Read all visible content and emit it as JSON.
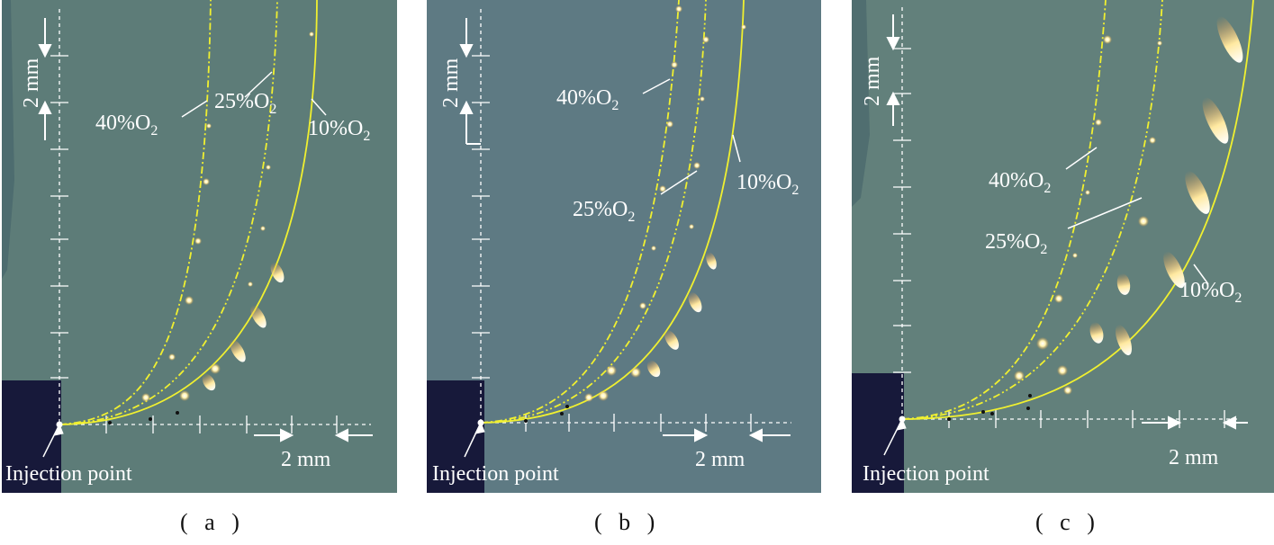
{
  "panels": [
    {
      "caption": "( a )",
      "scale_x": "2 mm",
      "scale_y": "2 mm",
      "injection": "Injection point",
      "labels": {
        "o40": "40%O",
        "o25": "25%O",
        "o10": "10%O",
        "sub": "2"
      }
    },
    {
      "caption": "( b )",
      "scale_x": "2 mm",
      "scale_y": "2 mm",
      "injection": "Injection point",
      "labels": {
        "o40": "40%O",
        "o25": "25%O",
        "o10": "10%O",
        "sub": "2"
      }
    },
    {
      "caption": "( c )",
      "scale_x": "2 mm",
      "scale_y": "2 mm",
      "injection": "Injection point",
      "labels": {
        "o40": "40%O",
        "o25": "25%O",
        "o10": "10%O",
        "sub": "2"
      }
    }
  ],
  "colors": {
    "background_a": "#5d7c78",
    "background_b": "#5e7a83",
    "background_c": "#62807b",
    "injector": "#17193a",
    "trajectory": "#f0f030",
    "grid": "#ffffff"
  }
}
